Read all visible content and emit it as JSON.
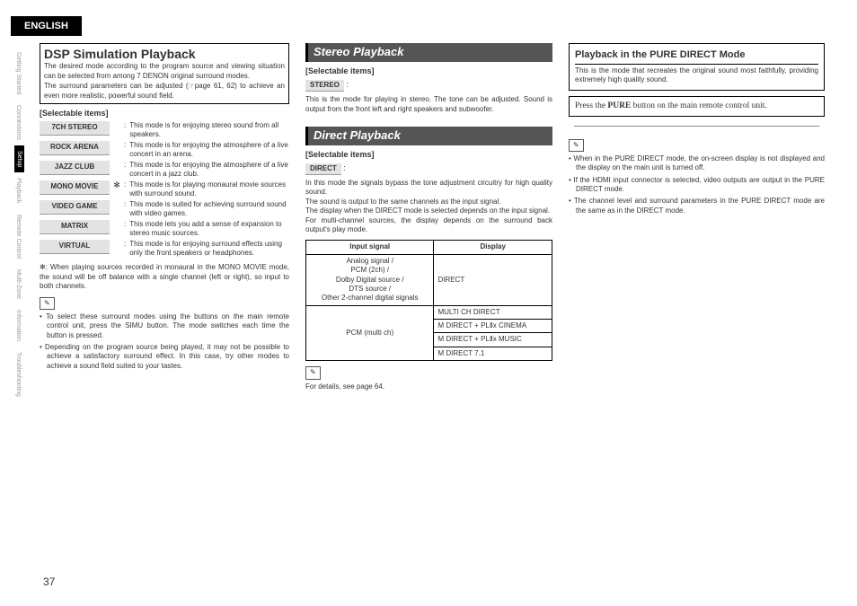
{
  "header": {
    "english": "ENGLISH"
  },
  "sidebar": {
    "items": [
      {
        "label": "Getting Started"
      },
      {
        "label": "Connections"
      },
      {
        "label": "Setup",
        "selected": true
      },
      {
        "label": "Playback"
      },
      {
        "label": "Remote Control"
      },
      {
        "label": "Multi-Zone"
      },
      {
        "label": "Information"
      },
      {
        "label": "Troubleshooting"
      }
    ]
  },
  "col1": {
    "title": "DSP Simulation Playback",
    "intro1": "The desired mode according to the program source and viewing situation can be selected from among 7 DENON original surround modes.",
    "intro2": "The surround parameters can be adjusted (☞page 61, 62) to achieve an even more realistic, powerful sound field.",
    "selectable": "[Selectable items]",
    "modes": [
      {
        "n": "7CH STEREO",
        "d": "This mode is for enjoying stereo sound from all speakers.",
        "a": ""
      },
      {
        "n": "ROCK ARENA",
        "d": "This mode is for enjoying the atmosphere of a live concert in an arena.",
        "a": ""
      },
      {
        "n": "JAZZ CLUB",
        "d": "This mode is for enjoying the atmosphere of a live concert in a jazz club.",
        "a": ""
      },
      {
        "n": "MONO MOVIE",
        "d": "This mode is for playing monaural movie sources with surround sound.",
        "a": "✻"
      },
      {
        "n": "VIDEO GAME",
        "d": "This mode is suited for achieving surround sound with video games.",
        "a": ""
      },
      {
        "n": "MATRIX",
        "d": "This mode lets you add a sense of expansion to stereo music sources.",
        "a": ""
      },
      {
        "n": "VIRTUAL",
        "d": "This mode is for enjoying surround effects using only the front speakers or headphones.",
        "a": ""
      }
    ],
    "asterisk_note": "✻: When playing sources recorded in monaural in the MONO MOVIE mode, the sound will be off balance with a single channel (left or right), so input to both channels.",
    "pencil": "✎",
    "bullet1": "To select these surround modes using the buttons on the main remote control unit, press the SIMU button. The mode switches each time the button is pressed.",
    "bullet2": "Depending on the program source being played, it may not be possible to achieve a satisfactory surround effect. In this case, try other modes to achieve a sound field suited to your tastes."
  },
  "col2": {
    "stereo_title": "Stereo Playback",
    "selectable": "[Selectable items]",
    "stereo_mode": "STEREO",
    "stereo_desc": "This is the mode for playing in stereo. The tone can be adjusted. Sound is output from the front left and right speakers and subwoofer.",
    "direct_title": "Direct Playback",
    "direct_mode": "DIRECT",
    "direct_desc1": "In this mode the signals bypass the tone adjustment circuitry for high quality sound.",
    "direct_desc2": "The sound is output to the same channels as the input signal.",
    "direct_desc3": "The display when the DIRECT mode is selected depends on the input signal.",
    "direct_desc4": "For multi-channel sources, the display depends on the surround back output's play mode.",
    "table": {
      "h1": "Input signal",
      "h2": "Display",
      "r1c1": "Analog signal /\nPCM (2ch) /\nDolby Digital source /\nDTS source /\nOther 2-channel digital signals",
      "r1c2": "DIRECT",
      "r2c1": "PCM (multi ch)",
      "r2a": "MULTI CH DIRECT",
      "r2b": "M DIRECT + PLⅡx CINEMA",
      "r2c": "M DIRECT + PLⅡx MUSIC",
      "r2d": "M DIRECT 7.1"
    },
    "pencil": "✎",
    "details": "For details, see page 64."
  },
  "col3": {
    "box_title": "Playback in the PURE DIRECT Mode",
    "box_desc": "This is the mode that recreates the original sound most faithfully, providing extremely high quality sound.",
    "callout_pre": "Press the ",
    "callout_b": "PURE",
    "callout_post": " button on the main remote control unit.",
    "pencil": "✎",
    "b1": "When in the PURE DIRECT mode, the on-screen display is not displayed and the display on the main unit is turned off.",
    "b2": "If the HDMI input connector is selected, video outputs are output in the PURE DIRECT mode.",
    "b3": "The channel level and surround parameters in the PURE DIRECT mode are the same as in the DIRECT mode."
  },
  "page_number": "37"
}
